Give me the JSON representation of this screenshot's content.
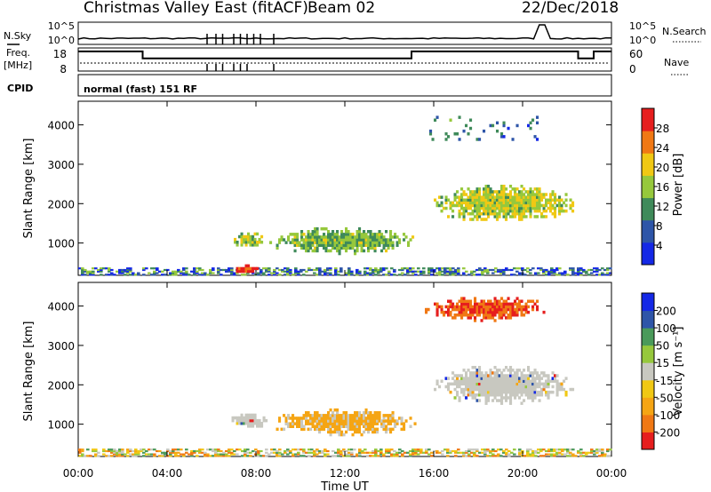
{
  "header": {
    "radar": "Christmas Valley East (fitACF)",
    "beam": "Beam 02",
    "date": "22/Dec/2018"
  },
  "strip": {
    "nsky_label": "N.Sky",
    "nsky_top": "10^5",
    "nsky_bottom": "10^0",
    "nsearch_top": "10^5",
    "nsearch_bottom": "10^0",
    "nsearch_label": "N.Search",
    "freq_label_1": "Freq.",
    "freq_label_2": "[MHz]",
    "freq_top": "18",
    "freq_bottom": "8",
    "nave_top": "60",
    "nave_bottom": "0",
    "nave_label": "Nave",
    "cpid_label": "CPID",
    "cpid_text": "normal (fast) 151 RF"
  },
  "chart_data": [
    {
      "type": "heatmap",
      "title": "",
      "quantity": "Power",
      "colorbar_label": "Power [dB]",
      "colorbar_ticks": [
        4,
        8,
        12,
        16,
        20,
        24,
        28
      ],
      "colorbar_range": [
        0,
        32
      ],
      "colors": [
        "#1428e6",
        "#2e55a8",
        "#3f8a5a",
        "#96c83c",
        "#f0c814",
        "#f07814",
        "#e61e1e"
      ],
      "ylabel": "Slant Range [km]",
      "yticks": [
        1000,
        2000,
        3000,
        4000
      ],
      "ylim": [
        180,
        4600
      ],
      "xlim": [
        0,
        24
      ],
      "grid": false,
      "regions": [
        {
          "t": [
            0,
            24
          ],
          "r": [
            180,
            380
          ],
          "value": "mixed 4-16 dB, scattered"
        },
        {
          "t": [
            6.8,
            8.4
          ],
          "r": [
            850,
            1250
          ],
          "value": 16
        },
        {
          "t": [
            8.5,
            15.2
          ],
          "r": [
            700,
            1350
          ],
          "value": 14
        },
        {
          "t": [
            6.9,
            8.1
          ],
          "r": [
            180,
            400
          ],
          "value": 30
        },
        {
          "t": [
            15.8,
            22.3
          ],
          "r": [
            1500,
            2450
          ],
          "value": 18
        },
        {
          "t": [
            15.6,
            21
          ],
          "r": [
            3600,
            4200
          ],
          "value": 8
        }
      ]
    },
    {
      "type": "heatmap",
      "title": "",
      "quantity": "Velocity",
      "colorbar_label": "Velocity [m s⁻¹]",
      "colorbar_ticks": [
        "200",
        "100",
        "50",
        "15",
        "-15",
        "-50",
        "-100",
        "-200"
      ],
      "colorbar_range": [
        -250,
        250
      ],
      "colors": [
        "#e61e1e",
        "#f07814",
        "#f5a514",
        "#f0c814",
        "#c8c8c0",
        "#96c83c",
        "#4a9a5a",
        "#2e55a8",
        "#1428e6"
      ],
      "ylabel": "Slant Range [km]",
      "yticks": [
        1000,
        2000,
        3000,
        4000
      ],
      "ylim": [
        180,
        4600
      ],
      "xlim": [
        0,
        24
      ],
      "xticks": [
        "00:00",
        "04:00",
        "08:00",
        "12:00",
        "16:00",
        "20:00",
        "00:00"
      ],
      "xlabel": "Time UT",
      "grid": false,
      "regions": [
        {
          "t": [
            0,
            24
          ],
          "r": [
            180,
            380
          ],
          "value": "mixed -50 to 50 m/s"
        },
        {
          "t": [
            6.8,
            8.4
          ],
          "r": [
            850,
            1250
          ],
          "value": 0
        },
        {
          "t": [
            8.5,
            15.2
          ],
          "r": [
            700,
            1350
          ],
          "value": -50
        },
        {
          "t": [
            15.8,
            22.3
          ],
          "r": [
            1500,
            2450
          ],
          "value": 0
        },
        {
          "t": [
            15.6,
            21
          ],
          "r": [
            3600,
            4200
          ],
          "value": -100
        }
      ]
    }
  ]
}
